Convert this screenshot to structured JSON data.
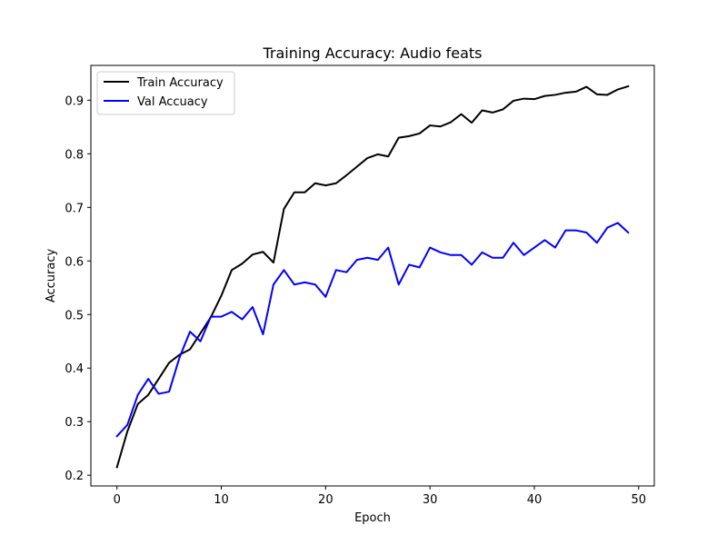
{
  "chart_data": {
    "type": "line",
    "title": "Training Accuracy: Audio feats",
    "xlabel": "Epoch",
    "ylabel": "Accuracy",
    "xlim": [
      -2.5,
      51.5
    ],
    "ylim": [
      0.18,
      0.965
    ],
    "xticks": [
      0,
      10,
      20,
      30,
      40,
      50
    ],
    "yticks": [
      0.2,
      0.3,
      0.4,
      0.5,
      0.6,
      0.7,
      0.8,
      0.9
    ],
    "grid": false,
    "legend_position": "top-left",
    "x": [
      0,
      1,
      2,
      3,
      4,
      5,
      6,
      7,
      8,
      9,
      10,
      11,
      12,
      13,
      14,
      15,
      16,
      17,
      18,
      19,
      20,
      21,
      22,
      23,
      24,
      25,
      26,
      27,
      28,
      29,
      30,
      31,
      32,
      33,
      34,
      35,
      36,
      37,
      38,
      39,
      40,
      41,
      42,
      43,
      44,
      45,
      46,
      47,
      48,
      49
    ],
    "series": [
      {
        "name": "Train Accuracy",
        "color": "#000000",
        "values": [
          0.215,
          0.282,
          0.333,
          0.35,
          0.38,
          0.41,
          0.425,
          0.435,
          0.465,
          0.495,
          0.535,
          0.583,
          0.595,
          0.612,
          0.617,
          0.597,
          0.697,
          0.728,
          0.728,
          0.745,
          0.741,
          0.745,
          0.76,
          0.776,
          0.792,
          0.799,
          0.795,
          0.83,
          0.833,
          0.838,
          0.853,
          0.851,
          0.859,
          0.874,
          0.858,
          0.881,
          0.877,
          0.883,
          0.899,
          0.903,
          0.902,
          0.908,
          0.91,
          0.914,
          0.916,
          0.925,
          0.911,
          0.91,
          0.92,
          0.926
        ]
      },
      {
        "name": "Val Accuacy",
        "color": "#0000ff",
        "values": [
          0.273,
          0.294,
          0.35,
          0.38,
          0.352,
          0.356,
          0.42,
          0.468,
          0.45,
          0.496,
          0.496,
          0.505,
          0.491,
          0.514,
          0.463,
          0.556,
          0.583,
          0.556,
          0.56,
          0.556,
          0.533,
          0.583,
          0.579,
          0.602,
          0.606,
          0.602,
          0.625,
          0.556,
          0.593,
          0.588,
          0.625,
          0.616,
          0.611,
          0.611,
          0.593,
          0.616,
          0.606,
          0.606,
          0.634,
          0.611,
          0.625,
          0.639,
          0.625,
          0.657,
          0.657,
          0.653,
          0.634,
          0.662,
          0.671,
          0.653
        ]
      }
    ]
  }
}
